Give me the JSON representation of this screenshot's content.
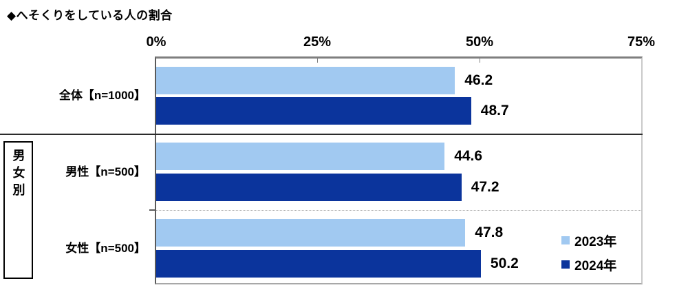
{
  "title": "◆へそくりをしている人の割合",
  "chart_data": {
    "type": "bar",
    "orientation": "horizontal",
    "title": "◆へそくりをしている人の割合",
    "categories": [
      "全体【n=1000】",
      "男性【n=500】",
      "女性【n=500】"
    ],
    "group_label": "男女別",
    "series": [
      {
        "name": "2023年",
        "color": "#A1C9F1",
        "values": [
          46.2,
          44.6,
          47.8
        ]
      },
      {
        "name": "2024年",
        "color": "#0B349C",
        "values": [
          48.7,
          47.2,
          50.2
        ]
      }
    ],
    "xlim": [
      0,
      75
    ],
    "x_ticks": [
      "0%",
      "25%",
      "50%",
      "75%"
    ],
    "value_labels": true,
    "legend_position": "inside-right",
    "grid": "category-separators-only"
  }
}
